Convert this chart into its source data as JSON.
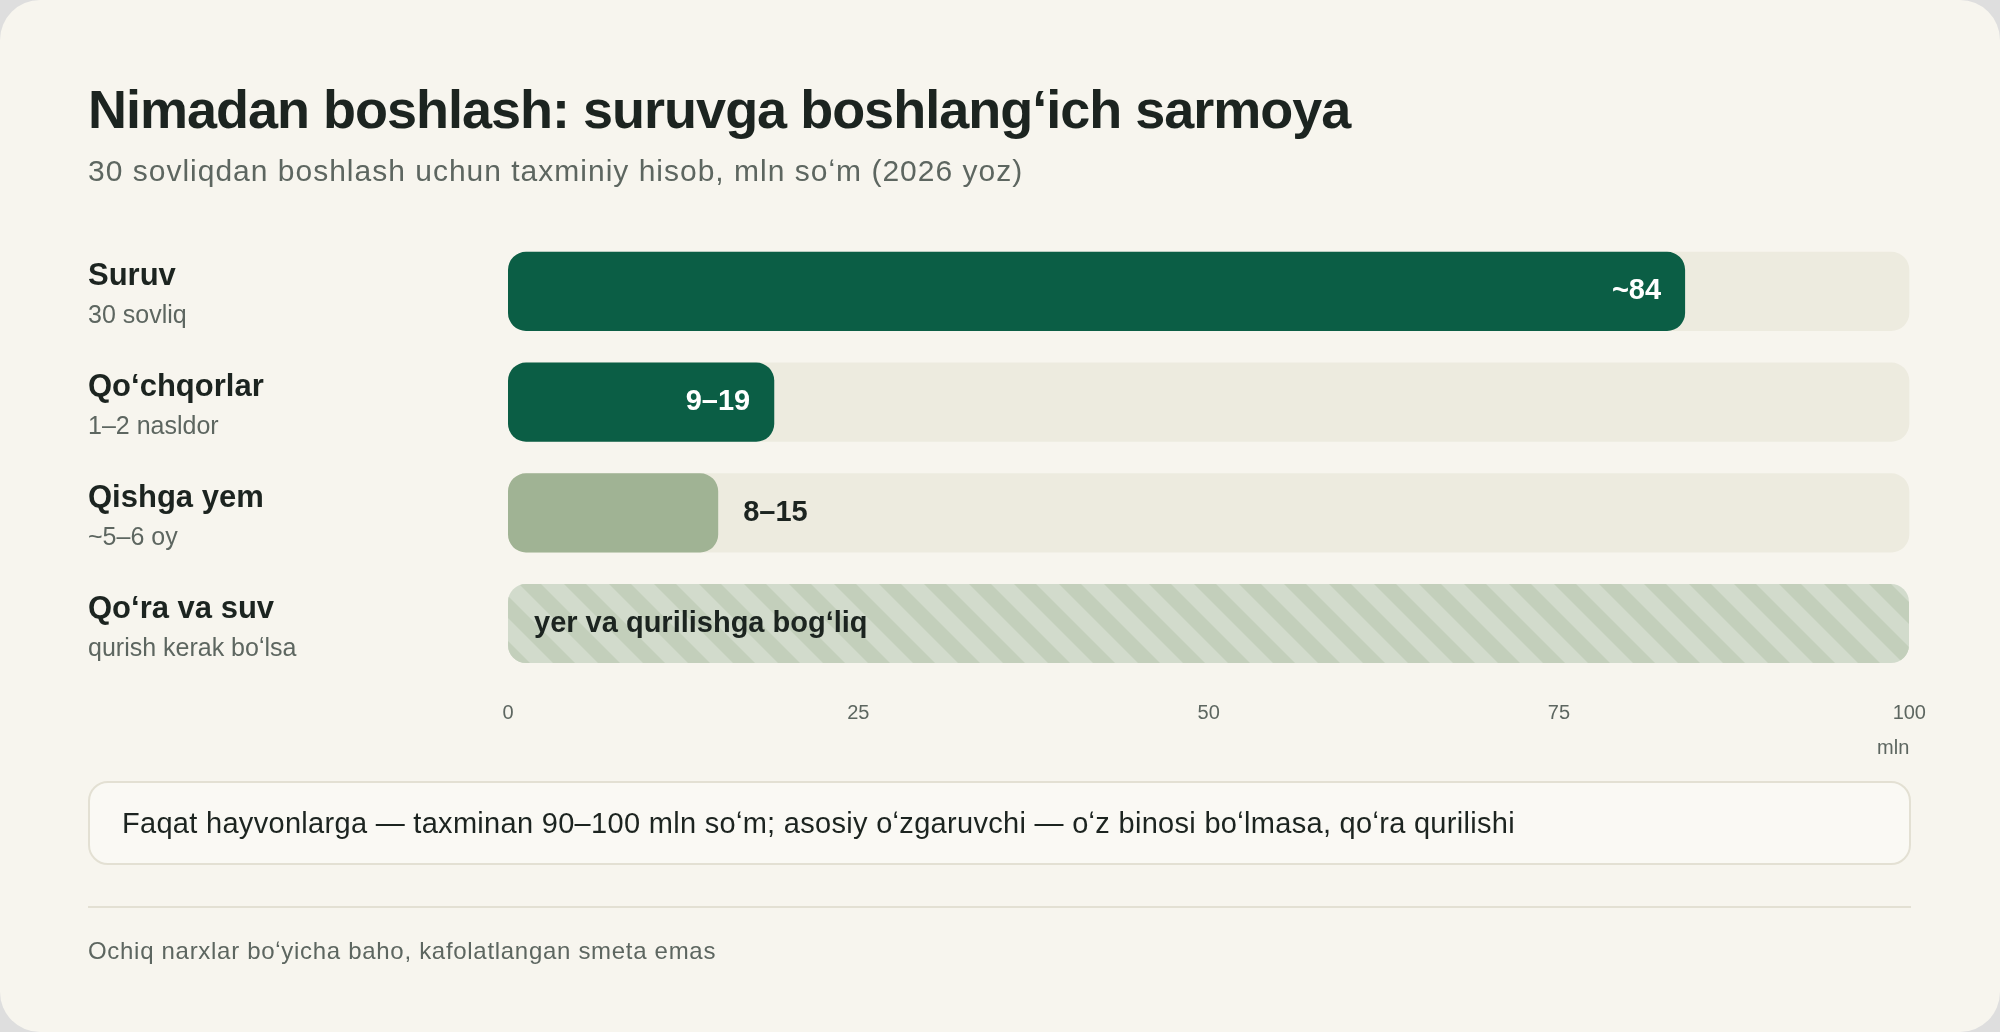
{
  "chart_data": {
    "type": "bar",
    "orientation": "horizontal",
    "title": "Nimadan boshlash: suruvga boshlangʻich sarmoya",
    "subtitle": "30 sovliqdan boshlash uchun taxminiy hisob, mln soʻm (2026 yoz)",
    "xlabel": "mln",
    "categories": [
      "Suruv\n30 sovliq",
      "Qoʻchqorlar\n1–2 nasldor",
      "Qishga yem\n~5–6 oy",
      "Qoʻra va suv\nqurish kerak boʻlsa"
    ],
    "values": [
      84,
      19,
      15,
      null
    ],
    "colors": [
      "#0b5e45",
      "#0b5e45",
      "#a0b394",
      "#c3cfbb"
    ],
    "value_labels": [
      "~84",
      "9–19",
      "8–15",
      "yer va qurilishga bogʻliq"
    ],
    "xlim": [
      0,
      100
    ],
    "xticks": [
      0,
      25,
      50,
      75,
      100
    ],
    "annotations": [
      "Faqat hayvonlarga — taxminan 90–100 mln soʻm; asosiy oʻzgaruvchi — oʻz binosi boʻlmasa, qoʻra qurilishi",
      "Ochiq narxlar boʻyicha baho, kafolatlangan smeta emas"
    ]
  }
}
